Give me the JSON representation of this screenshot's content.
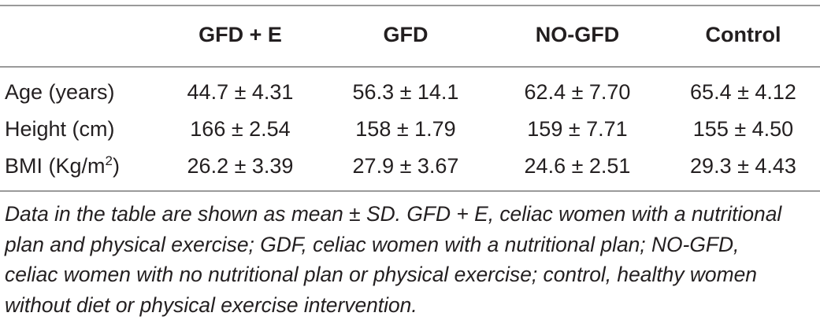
{
  "table": {
    "header": [
      "",
      "GFD + E",
      "GFD",
      "NO-GFD",
      "Control"
    ],
    "rows": [
      {
        "label": "Age (years)",
        "values": [
          "44.7 ± 4.31",
          "56.3 ± 14.1",
          "62.4 ± 7.70",
          "65.4 ± 4.12"
        ]
      },
      {
        "label": "Height (cm)",
        "values": [
          "166 ± 2.54",
          "158 ± 1.79",
          "159 ± 7.71",
          "155 ± 4.50"
        ]
      },
      {
        "label": "BMI (Kg/m",
        "label_sup": "2",
        "label_suffix": ")",
        "values": [
          "26.2 ± 3.39",
          "27.9 ± 3.67",
          "24.6 ± 2.51",
          "29.3 ± 4.43"
        ]
      }
    ]
  },
  "footnote": {
    "line1": "Data in the table are shown as mean ± SD. GFD + E, celiac women with a nutritional",
    "line2": "plan and physical exercise; GDF, celiac women with a nutritional plan; NO-GFD,",
    "line3": "celiac women with no nutritional plan or physical exercise; control, healthy women",
    "line4": "without diet or physical exercise intervention."
  }
}
